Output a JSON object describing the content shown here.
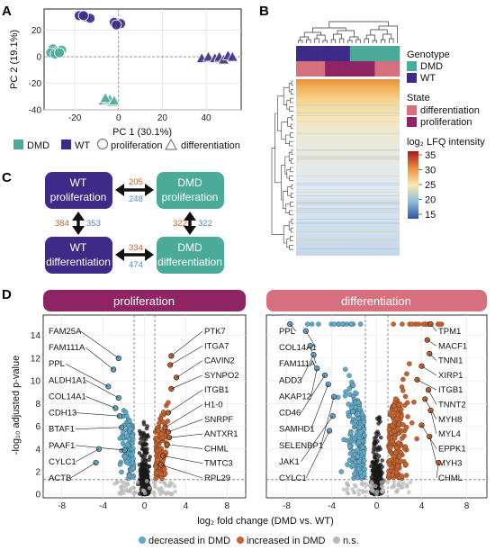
{
  "colors": {
    "dmd": "#4bab99",
    "wt": "#3e2a87",
    "differentiation_state": "#d7707e",
    "proliferation_state": "#8e2463",
    "proliferation_banner": "#8e2463",
    "differentiation_banner": "#d7707e",
    "decreased": "#5ea9c9",
    "increased": "#c8612a",
    "ns": "#b8b8b8",
    "count_up": "#c8612a",
    "count_down": "#5a88c0"
  },
  "panels": {
    "a": {
      "label": "A"
    },
    "b": {
      "label": "B"
    },
    "c": {
      "label": "C"
    },
    "d": {
      "label": "D"
    }
  },
  "heatmap": {
    "legend_genotype_title": "Genotype",
    "legend_genotype_items": [
      "DMD",
      "WT"
    ],
    "legend_state_title": "State",
    "legend_state_items": [
      "differentiation",
      "proliferation"
    ],
    "legend_intensity_title": "log₂ LFQ intensity",
    "intensity_ticks": [
      "35",
      "30",
      "25",
      "20",
      "15"
    ]
  },
  "flow": {
    "nodes": {
      "wt_prolif": [
        "WT",
        "proliferation"
      ],
      "dmd_prolif": [
        "DMD",
        "proliferation"
      ],
      "wt_diff": [
        "WT",
        "differentiation"
      ],
      "dmd_diff": [
        "DMD",
        "differentiation"
      ]
    },
    "counts": {
      "top_up": "205",
      "top_down": "248",
      "left_up": "384",
      "left_down": "353",
      "right_up": "322",
      "right_down": "322",
      "bottom_up": "334",
      "bottom_down": "474"
    }
  },
  "legend_d": {
    "decreased": "decreased in DMD",
    "increased": "increased in DMD",
    "ns": "n.s."
  },
  "chart_data": [
    {
      "panel": "A",
      "type": "scatter",
      "title": "",
      "xlabel": "PC 1 (30.1%)",
      "ylabel": "PC 2 (19.1%)",
      "xlim": [
        -34,
        56
      ],
      "ylim": [
        -40,
        36
      ],
      "xticks": [
        -20,
        0,
        20,
        40
      ],
      "yticks": [
        -40,
        -20,
        0,
        20
      ],
      "grid": true,
      "legend": [
        "DMD",
        "WT",
        "proliferation",
        "differentiation"
      ],
      "legend_position": "bottom",
      "series": [
        {
          "name": "DMD",
          "state": "proliferation",
          "points": [
            [
              -30,
              6
            ],
            [
              -28,
              4
            ],
            [
              -31,
              3
            ],
            [
              -26,
              5
            ],
            [
              -29,
              2
            ],
            [
              -27,
              3
            ]
          ]
        },
        {
          "name": "WT",
          "state": "proliferation",
          "points": [
            [
              -18,
              31
            ],
            [
              -15,
              30
            ],
            [
              -13,
              29
            ],
            [
              -16,
              31
            ],
            [
              -2,
              26
            ],
            [
              1,
              25
            ],
            [
              -1,
              24
            ]
          ]
        },
        {
          "name": "DMD",
          "state": "differentiation",
          "points": [
            [
              -7,
              -33
            ],
            [
              -5,
              -33
            ],
            [
              -3,
              -34
            ],
            [
              -4,
              -32
            ],
            [
              -6,
              -31
            ],
            [
              -2,
              -33
            ]
          ]
        },
        {
          "name": "WT",
          "state": "differentiation",
          "points": [
            [
              38,
              -1
            ],
            [
              41,
              0
            ],
            [
              44,
              -1
            ],
            [
              46,
              0
            ],
            [
              48,
              -2
            ],
            [
              50,
              1
            ],
            [
              52,
              0
            ]
          ]
        }
      ]
    },
    {
      "panel": "B",
      "type": "heatmap",
      "title": "",
      "columns_by_genotype": [
        "WT",
        "WT",
        "WT",
        "WT",
        "WT",
        "WT",
        "WT",
        "WT",
        "WT",
        "WT",
        "WT",
        "WT",
        "WT",
        "DMD",
        "DMD",
        "DMD",
        "DMD",
        "DMD",
        "DMD",
        "DMD",
        "DMD",
        "DMD",
        "DMD",
        "DMD",
        "DMD"
      ],
      "columns_by_state": [
        "differentiation",
        "differentiation",
        "differentiation",
        "differentiation",
        "differentiation",
        "differentiation",
        "differentiation",
        "proliferation",
        "proliferation",
        "proliferation",
        "proliferation",
        "proliferation",
        "proliferation",
        "proliferation",
        "proliferation",
        "proliferation",
        "proliferation",
        "proliferation",
        "proliferation",
        "differentiation",
        "differentiation",
        "differentiation",
        "differentiation",
        "differentiation",
        "differentiation"
      ],
      "color_scale_range": [
        15,
        35
      ],
      "value_label": "log₂ LFQ intensity"
    },
    {
      "panel": "D",
      "type": "scatter",
      "facets": [
        "proliferation",
        "differentiation"
      ],
      "xlabel": "log₂ fold change (DMD vs. WT)",
      "ylabel": "-log₁₀ adjusted p-value",
      "xlim": [
        -9.8,
        9.8
      ],
      "ylim": [
        -0.3,
        15.8
      ],
      "xticks": [
        -8,
        -4,
        0,
        4,
        8
      ],
      "yticks": [
        0,
        2,
        4,
        6,
        8,
        10,
        12,
        14
      ],
      "thresholds": {
        "x": [
          -1,
          1
        ],
        "y": 1.3
      },
      "legend": [
        "decreased in DMD",
        "increased in DMD",
        "n.s."
      ],
      "legend_position": "bottom",
      "labeled_genes": [
        {
          "facet": "proliferation",
          "gene": "FAM25A",
          "x": -2.5,
          "y": 12.0,
          "category": "decreased"
        },
        {
          "facet": "proliferation",
          "gene": "FAM111A",
          "x": -3.0,
          "y": 11.0,
          "category": "decreased"
        },
        {
          "facet": "proliferation",
          "gene": "PPL",
          "x": -3.5,
          "y": 9.5,
          "category": "decreased"
        },
        {
          "facet": "proliferation",
          "gene": "ALDH1A1",
          "x": -2.5,
          "y": 8.5,
          "category": "decreased"
        },
        {
          "facet": "proliferation",
          "gene": "COL14A1",
          "x": -2.8,
          "y": 7.6,
          "category": "decreased"
        },
        {
          "facet": "proliferation",
          "gene": "CDH13",
          "x": -2.4,
          "y": 6.9,
          "category": "decreased"
        },
        {
          "facet": "proliferation",
          "gene": "BTAF1",
          "x": -2.2,
          "y": 5.9,
          "category": "decreased"
        },
        {
          "facet": "proliferation",
          "gene": "PAAF1",
          "x": -1.9,
          "y": 3.9,
          "category": "decreased"
        },
        {
          "facet": "proliferation",
          "gene": "CYLC1",
          "x": -4.4,
          "y": 4.0,
          "category": "decreased"
        },
        {
          "facet": "proliferation",
          "gene": "ACTB",
          "x": -4.7,
          "y": 2.8,
          "category": "decreased"
        },
        {
          "facet": "proliferation",
          "gene": "PTK7",
          "x": 2.6,
          "y": 12.2,
          "category": "increased"
        },
        {
          "facet": "proliferation",
          "gene": "ITGA7",
          "x": 2.5,
          "y": 11.4,
          "category": "increased"
        },
        {
          "facet": "proliferation",
          "gene": "CAVIN2",
          "x": 3.1,
          "y": 10.3,
          "category": "increased"
        },
        {
          "facet": "proliferation",
          "gene": "SYNPO2",
          "x": 2.6,
          "y": 9.3,
          "category": "increased"
        },
        {
          "facet": "proliferation",
          "gene": "ITGB1",
          "x": 2.3,
          "y": 7.2,
          "category": "increased"
        },
        {
          "facet": "proliferation",
          "gene": "H1-0",
          "x": 2.0,
          "y": 5.9,
          "category": "increased"
        },
        {
          "facet": "proliferation",
          "gene": "SNRPF",
          "x": 2.3,
          "y": 5.5,
          "category": "increased"
        },
        {
          "facet": "proliferation",
          "gene": "ANTXR1",
          "x": 2.4,
          "y": 5.0,
          "category": "increased"
        },
        {
          "facet": "proliferation",
          "gene": "CHML",
          "x": 2.2,
          "y": 4.4,
          "category": "increased"
        },
        {
          "facet": "proliferation",
          "gene": "TMTC3",
          "x": 1.8,
          "y": 3.4,
          "category": "increased"
        },
        {
          "facet": "proliferation",
          "gene": "RPL29",
          "x": 1.6,
          "y": 2.6,
          "category": "increased"
        },
        {
          "facet": "differentiation",
          "gene": "PPL",
          "x": -7.7,
          "y": 15.0,
          "category": "decreased"
        },
        {
          "facet": "differentiation",
          "gene": "COL14A1",
          "x": -6.3,
          "y": 14.4,
          "category": "decreased"
        },
        {
          "facet": "differentiation",
          "gene": "FAM111A",
          "x": -5.9,
          "y": 13.1,
          "category": "decreased"
        },
        {
          "facet": "differentiation",
          "gene": "ADD3",
          "x": -5.6,
          "y": 12.3,
          "category": "decreased"
        },
        {
          "facet": "differentiation",
          "gene": "AKAP12",
          "x": -5.3,
          "y": 11.1,
          "category": "decreased"
        },
        {
          "facet": "differentiation",
          "gene": "CD46",
          "x": -4.6,
          "y": 10.5,
          "category": "decreased"
        },
        {
          "facet": "differentiation",
          "gene": "SAMHD1",
          "x": -4.3,
          "y": 9.7,
          "category": "decreased"
        },
        {
          "facet": "differentiation",
          "gene": "SELENBP1",
          "x": -3.8,
          "y": 8.6,
          "category": "decreased"
        },
        {
          "facet": "differentiation",
          "gene": "JAK1",
          "x": -3.9,
          "y": 6.9,
          "category": "decreased"
        },
        {
          "facet": "differentiation",
          "gene": "CYLC1",
          "x": -4.2,
          "y": 5.6,
          "category": "decreased"
        },
        {
          "facet": "differentiation",
          "gene": "TPM1",
          "x": 4.8,
          "y": 15.0,
          "category": "increased"
        },
        {
          "facet": "differentiation",
          "gene": "MACF1",
          "x": 4.5,
          "y": 13.6,
          "category": "increased"
        },
        {
          "facet": "differentiation",
          "gene": "TNNI1",
          "x": 4.7,
          "y": 12.4,
          "category": "increased"
        },
        {
          "facet": "differentiation",
          "gene": "XIRP1",
          "x": 4.0,
          "y": 11.3,
          "category": "increased"
        },
        {
          "facet": "differentiation",
          "gene": "ITGB1",
          "x": 3.6,
          "y": 10.1,
          "category": "increased"
        },
        {
          "facet": "differentiation",
          "gene": "TNNT2",
          "x": 4.6,
          "y": 9.2,
          "category": "increased"
        },
        {
          "facet": "differentiation",
          "gene": "MYH8",
          "x": 4.3,
          "y": 8.4,
          "category": "increased"
        },
        {
          "facet": "differentiation",
          "gene": "MYL4",
          "x": 4.8,
          "y": 7.4,
          "category": "increased"
        },
        {
          "facet": "differentiation",
          "gene": "EPPK1",
          "x": 4.0,
          "y": 6.1,
          "category": "increased"
        },
        {
          "facet": "differentiation",
          "gene": "MYH3",
          "x": 4.7,
          "y": 5.1,
          "category": "increased"
        },
        {
          "facet": "differentiation",
          "gene": "CHML",
          "x": 5.5,
          "y": 2.8,
          "category": "increased"
        }
      ]
    }
  ]
}
